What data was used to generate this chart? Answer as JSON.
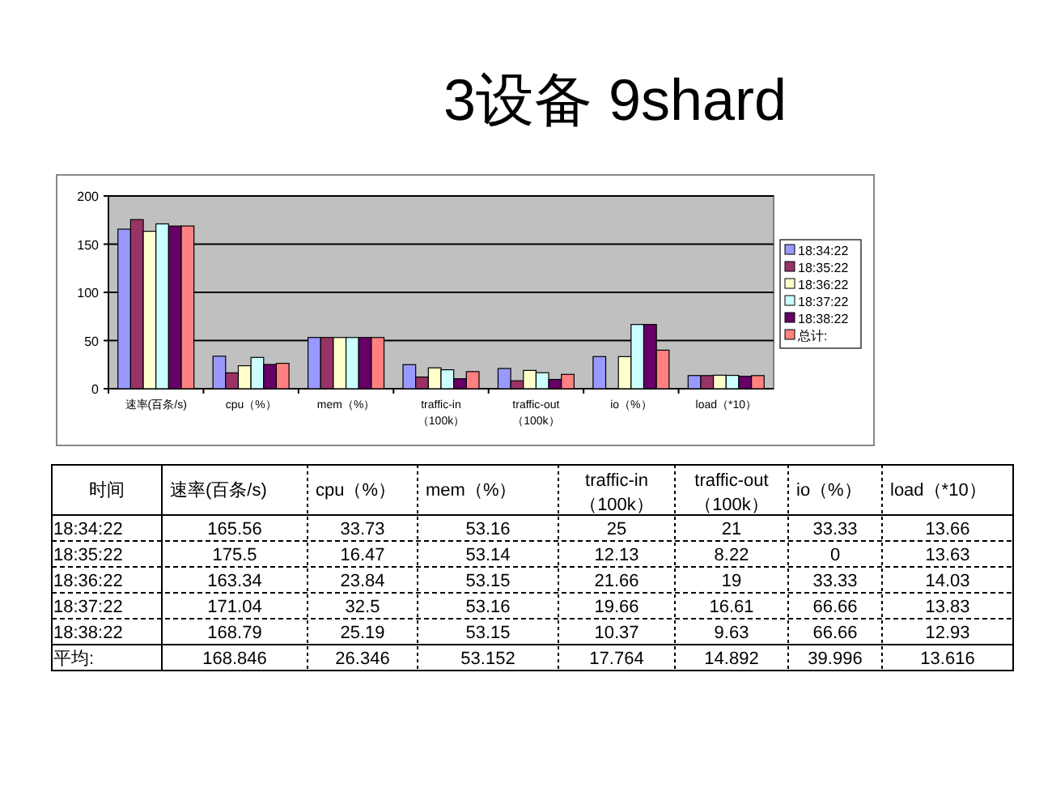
{
  "chart_data": [
    {
      "type": "bar",
      "title": "3设备 9shard",
      "categories": [
        "速率(百条/s)",
        "cpu（%）",
        "mem（%）",
        "traffic-in（100k）",
        "traffic-out（100k）",
        "io（%）",
        "load（*10）"
      ],
      "series": [
        {
          "name": "18:34:22",
          "color": "#9999ff",
          "values": [
            165.56,
            33.73,
            53.16,
            25,
            21,
            33.33,
            13.66
          ]
        },
        {
          "name": "18:35:22",
          "color": "#993366",
          "values": [
            175.5,
            16.47,
            53.14,
            12.13,
            8.22,
            0,
            13.63
          ]
        },
        {
          "name": "18:36:22",
          "color": "#ffffcc",
          "values": [
            163.34,
            23.84,
            53.15,
            21.66,
            19,
            33.33,
            14.03
          ]
        },
        {
          "name": "18:37:22",
          "color": "#ccffff",
          "values": [
            171.04,
            32.5,
            53.16,
            19.66,
            16.61,
            66.66,
            13.83
          ]
        },
        {
          "name": "18:38:22",
          "color": "#660066",
          "values": [
            168.79,
            25.19,
            53.15,
            10.37,
            9.63,
            66.66,
            12.93
          ]
        },
        {
          "name": "总计:",
          "color": "#ff8080",
          "values": [
            168.846,
            26.346,
            53.152,
            17.764,
            14.892,
            39.996,
            13.616
          ]
        }
      ],
      "ylim": [
        0,
        200
      ],
      "yticks": [
        0,
        50,
        100,
        150,
        200
      ],
      "grid": "y",
      "legend": "right"
    },
    {
      "type": "heatmap",
      "data_labels": true,
      "categories": [
        "速率(百条/s)",
        "cpu（%）",
        "mem（%）",
        "traffic-in（100k）",
        "traffic-out（100k）",
        "io（%）",
        "load（*10）"
      ],
      "y_categories": [
        "18:34:22",
        "18:35:22",
        "18:36:22",
        "18:37:22",
        "18:38:22",
        "平均:"
      ],
      "cells": [
        [
          165.56,
          33.73,
          53.16,
          25,
          21,
          33.33,
          13.66
        ],
        [
          175.5,
          16.47,
          53.14,
          12.13,
          8.22,
          0,
          13.63
        ],
        [
          163.34,
          23.84,
          53.15,
          21.66,
          19,
          33.33,
          14.03
        ],
        [
          171.04,
          32.5,
          53.16,
          19.66,
          16.61,
          66.66,
          13.83
        ],
        [
          168.79,
          25.19,
          53.15,
          10.37,
          9.63,
          66.66,
          12.93
        ],
        [
          168.846,
          26.346,
          53.152,
          17.764,
          14.892,
          39.996,
          13.616
        ]
      ],
      "annotations": [
        "时间"
      ]
    }
  ]
}
